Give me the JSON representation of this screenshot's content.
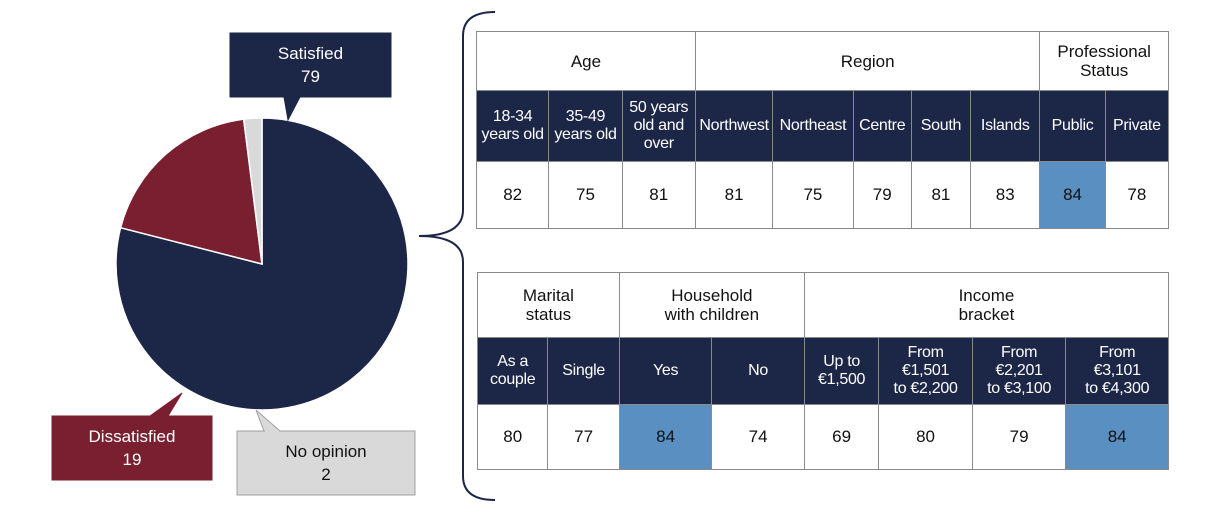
{
  "chart_data": [
    {
      "type": "pie",
      "slices": [
        {
          "label": "Satisfied",
          "value": 79,
          "color": "#1c2647"
        },
        {
          "label": "Dissatisfied",
          "value": 19,
          "color": "#7a1f2f"
        },
        {
          "label": "No opinion",
          "value": 2,
          "color": "#d9d9d9"
        }
      ],
      "callout_text_colors": [
        "#ffffff",
        "#ffffff",
        "#111111"
      ]
    },
    {
      "type": "table",
      "groups": [
        {
          "header": "Age",
          "columns": [
            "18-34\nyears old",
            "35-49\nyears old",
            "50 years\nold and\nover"
          ],
          "values": [
            "82",
            "75",
            "81"
          ]
        },
        {
          "header": "Region",
          "columns": [
            "Northwest",
            "Northeast",
            "Centre",
            "South",
            "Islands"
          ],
          "values": [
            "81",
            "75",
            "79",
            "81",
            "83"
          ]
        },
        {
          "header": "Professional\nStatus",
          "columns": [
            "Public",
            "Private"
          ],
          "values": [
            "84",
            "78"
          ]
        }
      ],
      "highlighted": [
        "Public"
      ],
      "highlight_color": "#5a8fc1"
    },
    {
      "type": "table",
      "groups": [
        {
          "header": "Marital\nstatus",
          "columns": [
            "As a\ncouple",
            "Single"
          ],
          "values": [
            "80",
            "77"
          ]
        },
        {
          "header": "Household\nwith children",
          "columns": [
            "Yes",
            "No"
          ],
          "values": [
            "84",
            "74"
          ]
        },
        {
          "header": "Income\nbracket",
          "columns": [
            "Up to\n€1,500",
            "From\n€1,501\nto €2,200",
            "From\n€2,201\nto €3,100",
            "From\n€3,101\nto €4,300"
          ],
          "values": [
            "69",
            "80",
            "79",
            "84"
          ]
        }
      ],
      "highlighted": [
        "Yes",
        "From\n€3,101\nto €4,300"
      ],
      "highlight_color": "#5a8fc1"
    }
  ]
}
